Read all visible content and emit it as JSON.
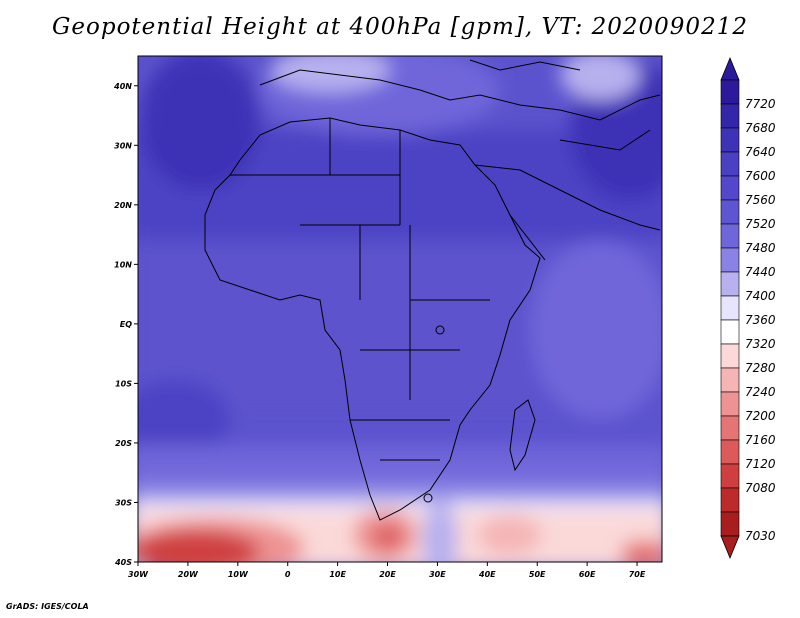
{
  "title": "Geopotential Height at 400hPa [gpm], VT: 2020090212",
  "footer": "GrADS: IGES/COLA",
  "map": {
    "lon_range": [
      -30,
      75
    ],
    "lat_range": [
      -40,
      45
    ],
    "lon_ticks": [
      {
        "value": -30,
        "label": "30W"
      },
      {
        "value": -20,
        "label": "20W"
      },
      {
        "value": -10,
        "label": "10W"
      },
      {
        "value": 0,
        "label": "0"
      },
      {
        "value": 10,
        "label": "10E"
      },
      {
        "value": 20,
        "label": "20E"
      },
      {
        "value": 30,
        "label": "30E"
      },
      {
        "value": 40,
        "label": "40E"
      },
      {
        "value": 50,
        "label": "50E"
      },
      {
        "value": 60,
        "label": "60E"
      },
      {
        "value": 70,
        "label": "70E"
      }
    ],
    "lat_ticks": [
      {
        "value": 40,
        "label": "40N"
      },
      {
        "value": 30,
        "label": "30N"
      },
      {
        "value": 20,
        "label": "20N"
      },
      {
        "value": 10,
        "label": "10N"
      },
      {
        "value": 0,
        "label": "EQ"
      },
      {
        "value": -10,
        "label": "10S"
      },
      {
        "value": -20,
        "label": "20S"
      },
      {
        "value": -30,
        "label": "30S"
      },
      {
        "value": -40,
        "label": "40S"
      }
    ]
  },
  "colorbar": {
    "labels": [
      "7720",
      "7680",
      "7640",
      "7600",
      "7560",
      "7520",
      "7480",
      "7440",
      "7400",
      "7360",
      "7320",
      "7280",
      "7240",
      "7200",
      "7160",
      "7120",
      "7080",
      "7030"
    ],
    "colors": [
      "#2b1b9a",
      "#3426a8",
      "#3e33b6",
      "#4a40c2",
      "#5447cb",
      "#5e55d2",
      "#6f66da",
      "#8a82e4",
      "#b7b1ef",
      "#e7e5fb",
      "#ffffff",
      "#fbd9d9",
      "#f5b5b5",
      "#ee9393",
      "#e57575",
      "#dc5a5a",
      "#cf3f3f",
      "#bd2a2a",
      "#a81d1d"
    ]
  }
}
